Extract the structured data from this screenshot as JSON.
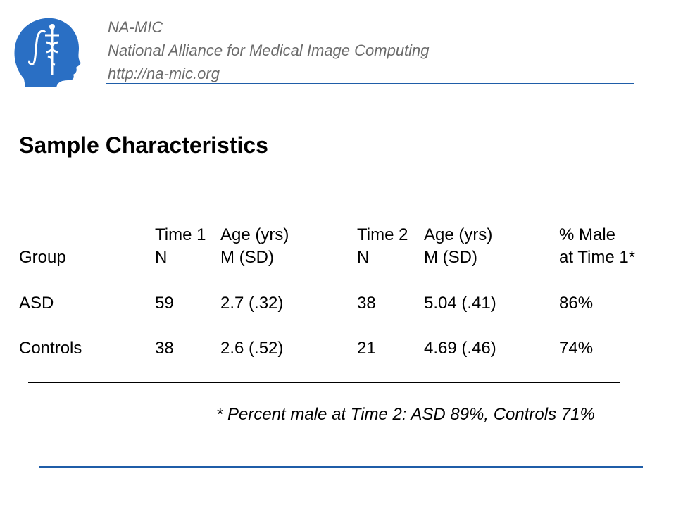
{
  "header": {
    "org_name": "NA-MIC",
    "org_full": "National Alliance for Medical Image Computing",
    "org_url": "http://na-mic.org",
    "logo_color": "#2a6fc4",
    "rule_color": "#1f5da8"
  },
  "slide": {
    "title": "Sample Characteristics"
  },
  "table": {
    "header_row1": [
      "",
      "Time 1",
      "Age (yrs)",
      "Time 2",
      "Age (yrs)",
      "% Male"
    ],
    "header_row2": [
      "Group",
      "N",
      "M (SD)",
      "N",
      "M (SD)",
      "at Time 1*"
    ],
    "rows": [
      [
        "ASD",
        "59",
        "2.7 (.32)",
        "38",
        "5.04 (.41)",
        "86%"
      ],
      [
        "Controls",
        "38",
        "2.6 (.52)",
        "21",
        "4.69 (.46)",
        "74%"
      ]
    ]
  },
  "footnote": "* Percent male at Time 2:  ASD 89%, Controls 71%"
}
